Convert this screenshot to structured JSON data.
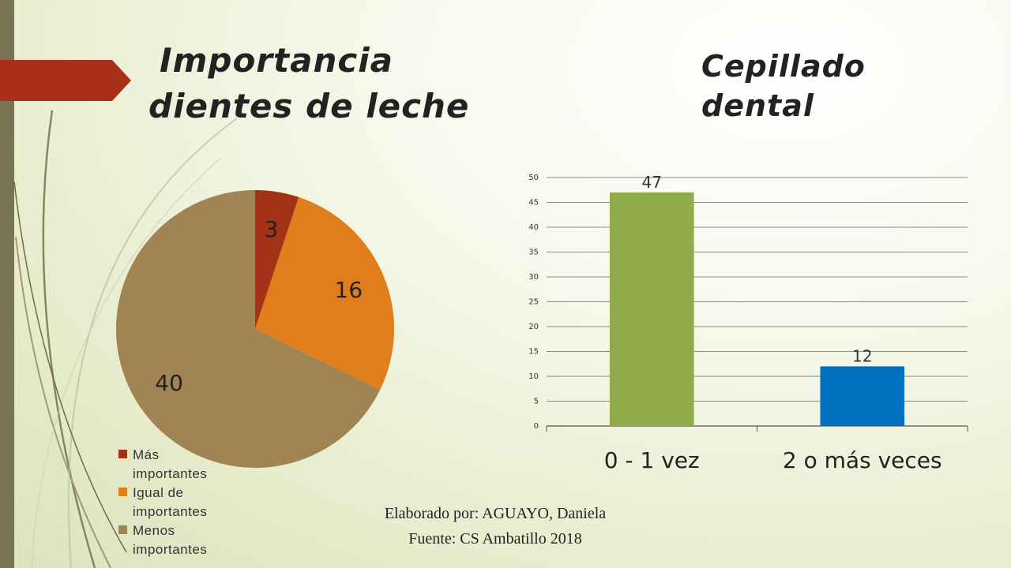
{
  "slide": {
    "title_left_line1": "Importancia",
    "title_left_line2": "dientes de leche",
    "title_right_line1": "Cepillado",
    "title_right_line2": "dental",
    "footer_line1": "Elaborado por: AGUAYO, Daniela",
    "footer_line2": "Fuente: CS Ambatillo 2018",
    "accent_color": "#a8301a",
    "bar_color": "#7a7352"
  },
  "chart_data": [
    {
      "type": "pie",
      "categories": [
        "Más importantes",
        "Igual de importantes",
        "Menos importantes"
      ],
      "legend_lines": [
        [
          "Más",
          "importantes"
        ],
        [
          "Igual de",
          "importantes"
        ],
        [
          "Menos",
          "importantes"
        ]
      ],
      "values": [
        3,
        16,
        40
      ],
      "colors": [
        "#a33216",
        "#e07e1b",
        "#a08453"
      ],
      "legend": "bottom-left"
    },
    {
      "type": "bar",
      "categories": [
        "0 - 1 vez",
        "2 o más veces"
      ],
      "values": [
        47,
        12
      ],
      "colors": [
        "#8fab4a",
        "#0070c0"
      ],
      "ylim": [
        0,
        50
      ],
      "yticks": [
        0,
        5,
        10,
        15,
        20,
        25,
        30,
        35,
        40,
        45,
        50
      ],
      "grid": true,
      "legend": "none"
    }
  ]
}
